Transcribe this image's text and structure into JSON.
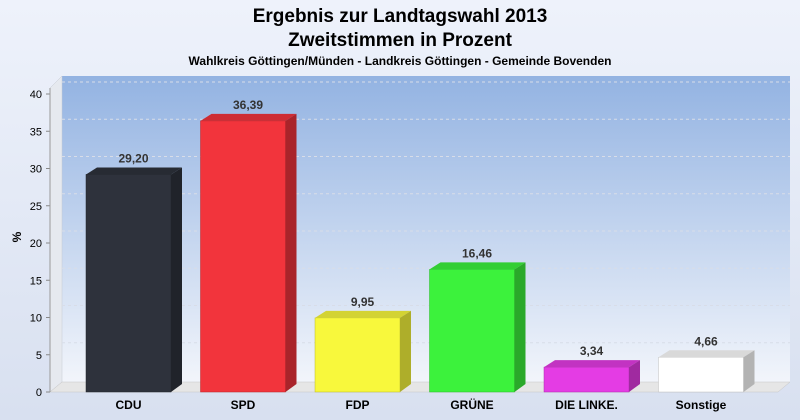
{
  "chart_data": {
    "type": "bar",
    "title": "Ergebnis zur Landtagswahl 2013",
    "title2": "Zweitstimmen in Prozent",
    "subtitle": "Wahlkreis Göttingen/Münden - Landkreis Göttingen - Gemeinde Bovenden",
    "ylabel": "%",
    "ylim": [
      0,
      40
    ],
    "yticks": [
      "0",
      "5",
      "10",
      "15",
      "20",
      "25",
      "30",
      "35",
      "40"
    ],
    "categories": [
      "CDU",
      "SPD",
      "FDP",
      "GRÜNE",
      "DIE LINKE.",
      "Sonstige"
    ],
    "values": [
      29.2,
      36.39,
      9.95,
      16.46,
      3.34,
      4.66
    ],
    "value_labels": [
      "29,20",
      "36,39",
      "9,95",
      "16,46",
      "3,34",
      "4,66"
    ],
    "colors": [
      "#2e323c",
      "#f2343c",
      "#f8f83c",
      "#3cf23c",
      "#e43ce4",
      "#ffffff"
    ],
    "grid": true
  }
}
